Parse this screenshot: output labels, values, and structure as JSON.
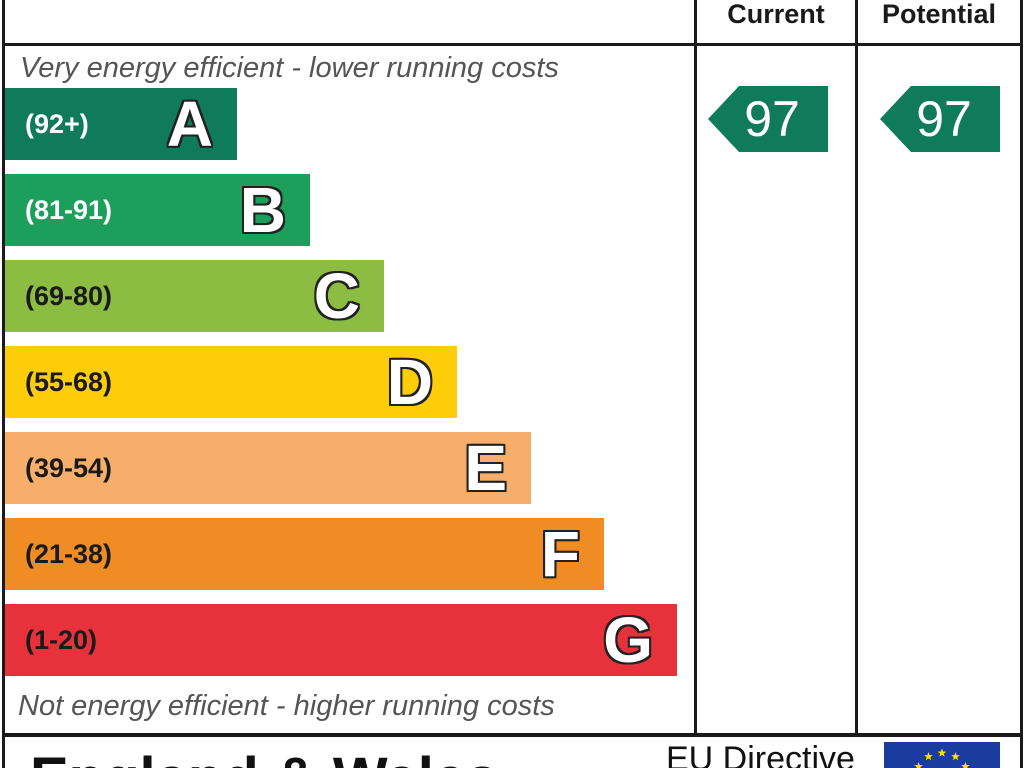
{
  "chart_data": {
    "type": "bar",
    "orientation": "horizontal",
    "categories": [
      "A",
      "B",
      "C",
      "D",
      "E",
      "F",
      "G"
    ],
    "ranges": [
      "(92+)",
      "(81-91)",
      "(69-80)",
      "(55-68)",
      "(39-54)",
      "(21-38)",
      "(1-20)"
    ],
    "colors": [
      "#0f7b5b",
      "#1b9f5b",
      "#8cbc42",
      "#fecd0a",
      "#f6ae6a",
      "#f08c24",
      "#e7323c"
    ],
    "range_text_colors": [
      "#ffffff",
      "#ffffff",
      "#1a1a1a",
      "#1a1a1a",
      "#1a1a1a",
      "#1a1a1a",
      "#1a1a1a"
    ],
    "top_label": "Very energy efficient - lower running costs",
    "bottom_label": "Not energy efficient - higher running costs",
    "series": [
      {
        "name": "Current",
        "value": 97
      },
      {
        "name": "Potential",
        "value": 97
      }
    ]
  },
  "footer": {
    "region": "England & Wales",
    "directive": "EU Directive",
    "flag_color": "#1a3c9e",
    "star_color": "#ffdd00"
  }
}
